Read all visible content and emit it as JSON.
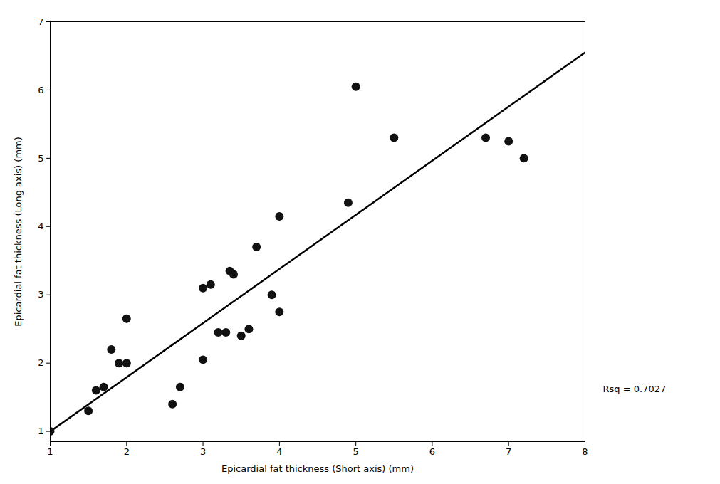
{
  "chart_data": {
    "type": "scatter",
    "xlabel": "Epicardial fat thickness (Short axis) (mm)",
    "ylabel": "Epicardial fat thickness (Long axis) (mm)",
    "annotation": "Rsq = 0.7027",
    "series": [
      {
        "type": "scatter",
        "color": "#111111",
        "marker": "circle",
        "x": [
          1.0,
          1.5,
          1.6,
          1.7,
          1.8,
          1.9,
          2.0,
          2.0,
          2.6,
          2.7,
          3.0,
          3.0,
          3.1,
          3.2,
          3.3,
          3.35,
          3.4,
          3.5,
          3.6,
          3.7,
          3.9,
          4.0,
          4.0,
          4.9,
          5.0,
          5.5,
          6.7,
          7.0,
          7.2
        ],
        "values": [
          1.0,
          1.3,
          1.6,
          1.65,
          2.2,
          2.0,
          2.0,
          2.65,
          1.4,
          1.65,
          2.05,
          3.1,
          3.15,
          2.45,
          2.45,
          3.35,
          3.3,
          2.4,
          2.5,
          3.7,
          3.0,
          2.75,
          4.15,
          4.35,
          6.05,
          5.3,
          5.3,
          5.25,
          5.0
        ]
      },
      {
        "type": "line",
        "color": "#000000",
        "line_style": "solid",
        "x": [
          1.0,
          8.0
        ],
        "values": [
          1.0,
          6.55
        ]
      }
    ],
    "xlim": [
      1,
      8
    ],
    "ylim": [
      0.85,
      7
    ],
    "xticks": [
      1,
      2,
      3,
      4,
      5,
      6,
      7,
      8
    ],
    "yticks": [
      1,
      2,
      3,
      4,
      5,
      6,
      7
    ],
    "grid": false
  }
}
